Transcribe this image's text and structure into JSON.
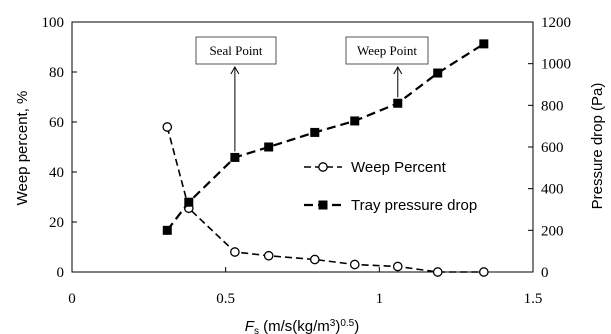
{
  "chart_data": {
    "type": "line",
    "x_axis": {
      "label": "F_s (m/s(kg/m^3)^0.5)",
      "label_main": "F",
      "label_sub": "s",
      "label_unit": " (m/s(kg/m",
      "label_sup": "3",
      "label_tail": ")",
      "label_sup2": "0.5",
      "label_close": ")",
      "range": [
        0,
        1.5
      ],
      "ticks": [
        0,
        0.5,
        1,
        1.5
      ],
      "tick_labels": [
        "0",
        "0.5",
        "1",
        "1.5"
      ]
    },
    "y_left": {
      "label": "Weep percent, %",
      "range": [
        0,
        100
      ],
      "ticks": [
        0,
        20,
        40,
        60,
        80,
        100
      ],
      "tick_labels": [
        "0",
        "20",
        "40",
        "60",
        "80",
        "100"
      ]
    },
    "y_right": {
      "label": "Pressure drop (Pa)",
      "range": [
        0,
        1200
      ],
      "ticks": [
        0,
        200,
        400,
        600,
        800,
        1000,
        1200
      ],
      "tick_labels": [
        "0",
        "200",
        "400",
        "600",
        "800",
        "1000",
        "1200"
      ]
    },
    "series": [
      {
        "name": "Weep Percent",
        "axis": "left",
        "marker": "open-circle",
        "line": "dashed",
        "color": "#000000",
        "x": [
          0.31,
          0.38,
          0.53,
          0.64,
          0.79,
          0.92,
          1.06,
          1.19,
          1.34
        ],
        "y": [
          58,
          25.5,
          8,
          6.5,
          5,
          3,
          2.2,
          0,
          0
        ]
      },
      {
        "name": "Tray pressure drop",
        "axis": "right",
        "marker": "filled-square",
        "line": "dashed",
        "color": "#000000",
        "x": [
          0.31,
          0.38,
          0.53,
          0.64,
          0.79,
          0.92,
          1.06,
          1.19,
          1.34
        ],
        "y": [
          200,
          335,
          550,
          600,
          670,
          725,
          810,
          955,
          1095
        ]
      }
    ],
    "annotations": [
      {
        "text": "Seal Point",
        "x": 0.53,
        "y_axis": "right",
        "y": 550
      },
      {
        "text": "Weep Point",
        "x": 1.06,
        "y_axis": "right",
        "y": 810
      }
    ],
    "legend": {
      "placement": "center-right"
    },
    "grid": false
  }
}
